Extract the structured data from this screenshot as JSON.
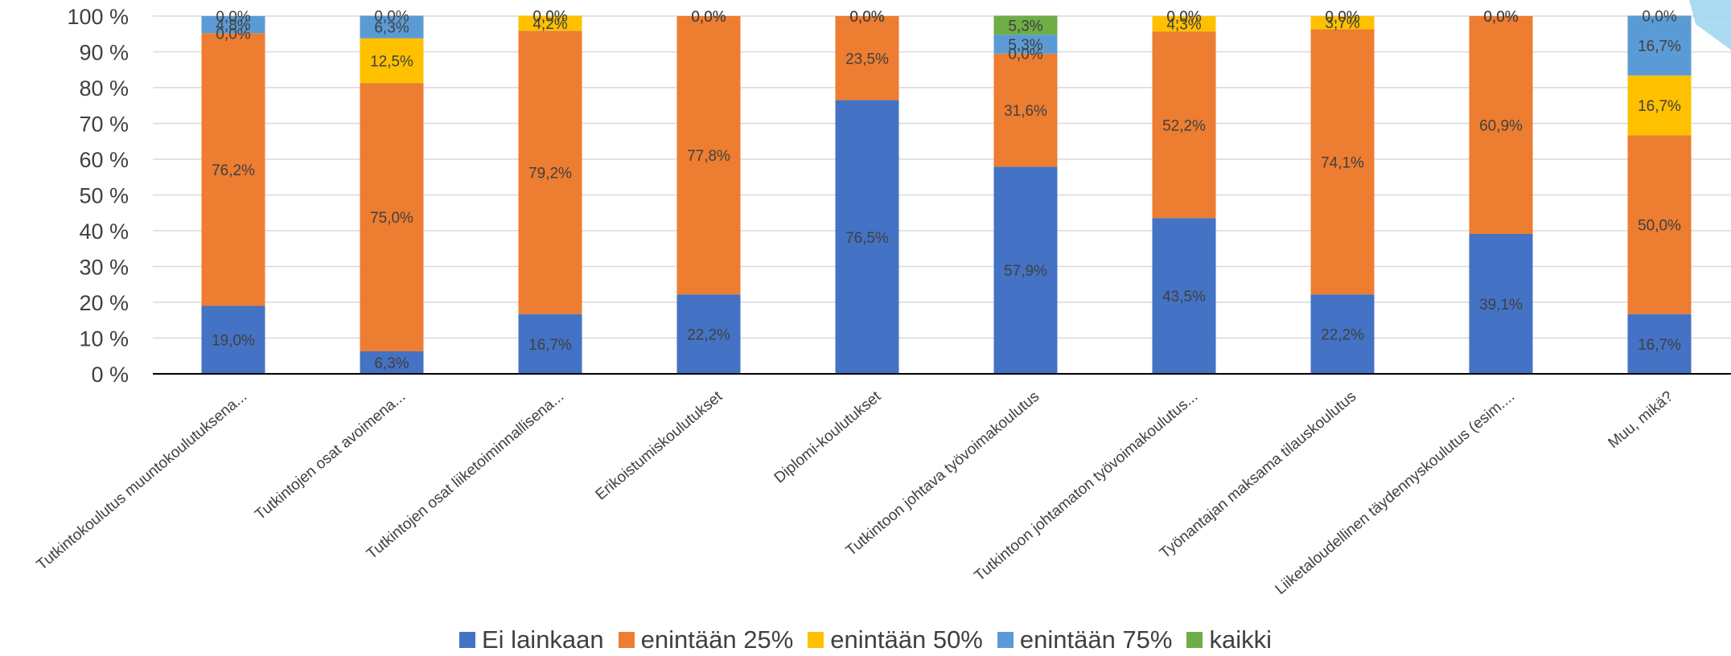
{
  "chart_data": {
    "type": "bar",
    "stacked": true,
    "percent_axis": true,
    "title": "",
    "xlabel": "",
    "ylabel": "",
    "ylim": [
      0,
      100
    ],
    "y_ticks": [
      "0 %",
      "10 %",
      "20 %",
      "30 %",
      "40 %",
      "50 %",
      "60 %",
      "70 %",
      "80 %",
      "90 %",
      "100 %"
    ],
    "grid": true,
    "legend_position": "bottom",
    "categories": [
      "Tutkintokoulutus muuntokoulutuksena...",
      "Tutkintojen osat avoimena...",
      "Tutkintojen osat liiketoiminnallisena...",
      "Erikoistumiskoulutukset",
      "Diplomi-koulutukset",
      "Tutkintoon johtava työvoimakoulutus",
      "Tutkintoon johtamaton työvoimakoulutus...",
      "Työnantajan maksama tilauskoulutus",
      "Liiketaloudellinen täydennyskoulutus (esim....",
      "Muu, mikä?"
    ],
    "series": [
      {
        "name": "Ei lainkaan",
        "color": "#4472C4",
        "values": [
          19.0,
          6.3,
          16.7,
          22.2,
          76.5,
          57.9,
          43.5,
          22.2,
          39.1,
          16.7
        ]
      },
      {
        "name": "enintään 25%",
        "color": "#ED7D31",
        "values": [
          76.2,
          75.0,
          79.2,
          77.8,
          23.5,
          31.6,
          52.2,
          74.1,
          60.9,
          50.0
        ]
      },
      {
        "name": "enintään 50%",
        "color": "#FFC000",
        "values": [
          0.0,
          12.5,
          4.2,
          0.0,
          0.0,
          0.0,
          4.3,
          3.7,
          0.0,
          16.7
        ]
      },
      {
        "name": "enintään 75%",
        "color": "#5B9BD5",
        "values": [
          4.8,
          6.3,
          0.0,
          0.0,
          0.0,
          5.3,
          0.0,
          0.0,
          0.0,
          16.7
        ]
      },
      {
        "name": "kaikki",
        "color": "#70AD47",
        "values": [
          0.0,
          0.0,
          0.0,
          0.0,
          0.0,
          5.3,
          0.0,
          0.0,
          0.0,
          0.0
        ]
      }
    ],
    "data_labels": [
      [
        "19,0%",
        "6,3%",
        "16,7%",
        "22,2%",
        "76,5%",
        "57,9%",
        "43,5%",
        "22,2%",
        "39,1%",
        "16,7%"
      ],
      [
        "76,2%",
        "75,0%",
        "79,2%",
        "77,8%",
        "23,5%",
        "31,6%",
        "52,2%",
        "74,1%",
        "60,9%",
        "50,0%"
      ],
      [
        "0,0%",
        "12,5%",
        "4,2%",
        "0,0%",
        "0,0%",
        "0,0%",
        "4,3%",
        "3,7%",
        "0,0%",
        "16,7%"
      ],
      [
        "4,8%",
        "6,3%",
        "0,0%",
        "0,0%",
        "0,0%",
        "5,3%",
        "0,0%",
        "0,0%",
        "0,0%",
        "16,7%"
      ],
      [
        "0,0%",
        "0,0%",
        "0,0%",
        "0,0%",
        "0,0%",
        "5,3%",
        "0,0%",
        "0,0%",
        "0,0%",
        "0,0%"
      ]
    ]
  },
  "legend": {
    "items": [
      {
        "label": "Ei lainkaan",
        "color": "#4472C4"
      },
      {
        "label": "enintään 25%",
        "color": "#ED7D31"
      },
      {
        "label": "enintään 50%",
        "color": "#FFC000"
      },
      {
        "label": "enintään 75%",
        "color": "#5B9BD5"
      },
      {
        "label": "kaikki",
        "color": "#70AD47"
      }
    ]
  },
  "style": {
    "gridline_color": "#D9D9D9",
    "axis_color": "#000000",
    "text_color": "#404040",
    "accent_decoration_color": "#9DD3EE"
  }
}
